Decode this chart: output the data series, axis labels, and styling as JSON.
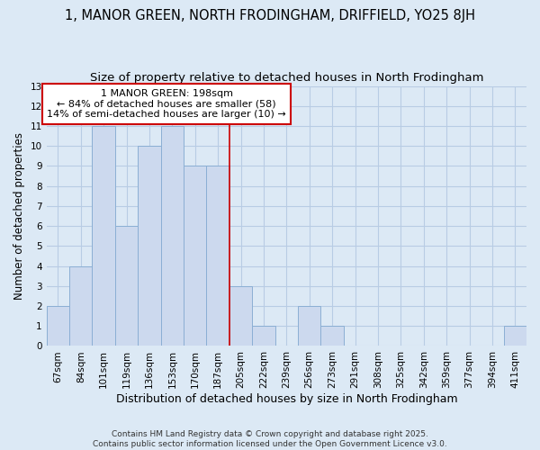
{
  "title": "1, MANOR GREEN, NORTH FRODINGHAM, DRIFFIELD, YO25 8JH",
  "subtitle": "Size of property relative to detached houses in North Frodingham",
  "xlabel": "Distribution of detached houses by size in North Frodingham",
  "ylabel": "Number of detached properties",
  "categories": [
    "67sqm",
    "84sqm",
    "101sqm",
    "119sqm",
    "136sqm",
    "153sqm",
    "170sqm",
    "187sqm",
    "205sqm",
    "222sqm",
    "239sqm",
    "256sqm",
    "273sqm",
    "291sqm",
    "308sqm",
    "325sqm",
    "342sqm",
    "359sqm",
    "377sqm",
    "394sqm",
    "411sqm"
  ],
  "values": [
    2,
    4,
    11,
    6,
    10,
    11,
    9,
    9,
    3,
    1,
    0,
    2,
    1,
    0,
    0,
    0,
    0,
    0,
    0,
    0,
    1
  ],
  "bar_color": "#ccd9ee",
  "bar_edgecolor": "#8bafd4",
  "vline_x_index": 7.5,
  "vline_color": "#cc0000",
  "annotation_title": "1 MANOR GREEN: 198sqm",
  "annotation_line1": "← 84% of detached houses are smaller (58)",
  "annotation_line2": "14% of semi-detached houses are larger (10) →",
  "annotation_box_edgecolor": "#cc0000",
  "ylim": [
    0,
    13
  ],
  "yticks": [
    0,
    1,
    2,
    3,
    4,
    5,
    6,
    7,
    8,
    9,
    10,
    11,
    12,
    13
  ],
  "grid_color": "#b8cce4",
  "background_color": "#dce9f5",
  "plot_bg_color": "#dce9f5",
  "footer_line1": "Contains HM Land Registry data © Crown copyright and database right 2025.",
  "footer_line2": "Contains public sector information licensed under the Open Government Licence v3.0.",
  "title_fontsize": 10.5,
  "subtitle_fontsize": 9.5,
  "xlabel_fontsize": 9,
  "ylabel_fontsize": 8.5,
  "tick_fontsize": 7.5,
  "annotation_fontsize": 8,
  "footer_fontsize": 6.5
}
